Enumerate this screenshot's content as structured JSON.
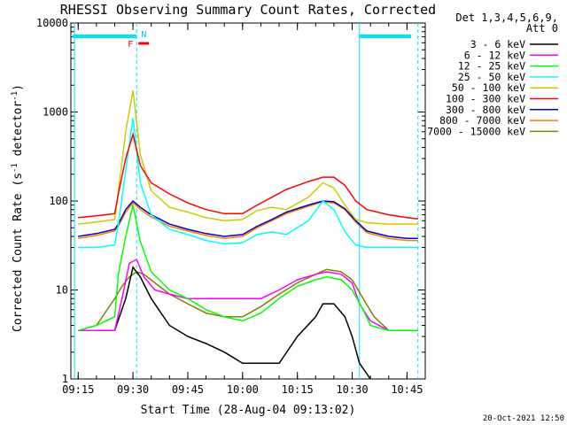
{
  "chart_data": {
    "type": "line",
    "title": "RHESSI Observing Summary Count Rates, Corrected",
    "xlabel": "Start Time (28-Aug-04 09:13:02)",
    "ylabel_main": "Corrected Count Rate (s",
    "ylabel_sup1": "-1",
    "ylabel_mid": " detector",
    "ylabel_sup2": "-1",
    "ylabel_end": ")",
    "y_scale": "log",
    "ylim": [
      1,
      10000
    ],
    "xlim": [
      "09:13",
      "10:50"
    ],
    "x_ticks": [
      "09:15",
      "09:30",
      "09:45",
      "10:00",
      "10:15",
      "10:30",
      "10:45"
    ],
    "y_ticks": [
      "1",
      "10",
      "100",
      "1000",
      "10000"
    ],
    "legend_header": [
      "Det 1,3,4,5,6,9,",
      "Att 0"
    ],
    "legend_position": "right",
    "timestamp": "20-Oct-2021 12:50",
    "flags": {
      "f_label": "F",
      "n_label": "N"
    },
    "vertical_lines": [
      "09:14",
      "09:31",
      "10:32",
      "10:48"
    ],
    "series": [
      {
        "name": "3 - 6 keV",
        "color": "#000000",
        "x": [
          "09:15",
          "09:25",
          "09:28",
          "09:30",
          "09:32",
          "09:35",
          "09:40",
          "09:45",
          "09:50",
          "09:55",
          "10:00",
          "10:05",
          "10:10",
          "10:15",
          "10:20",
          "10:22",
          "10:25",
          "10:28",
          "10:30",
          "10:32",
          "10:35"
        ],
        "y": [
          3.5,
          3.5,
          8,
          18,
          14,
          8,
          4,
          3,
          2.5,
          2,
          1.5,
          1.5,
          1.5,
          3,
          5,
          7,
          7,
          5,
          3,
          1.5,
          1
        ]
      },
      {
        "name": "6 - 12 keV",
        "color": "#ff00ff",
        "x": [
          "09:15",
          "09:25",
          "09:27",
          "09:29",
          "09:31",
          "09:33",
          "09:36",
          "09:40",
          "09:45",
          "09:50",
          "09:55",
          "10:00",
          "10:05",
          "10:10",
          "10:15",
          "10:20",
          "10:23",
          "10:27",
          "10:30",
          "10:32",
          "10:35",
          "10:40",
          "10:45",
          "10:48"
        ],
        "y": [
          3.5,
          3.5,
          8,
          20,
          22,
          14,
          10,
          9,
          8,
          8,
          8,
          8,
          8,
          10,
          13,
          15,
          16,
          15,
          12,
          7,
          4.5,
          3.5,
          3.5,
          3.5
        ]
      },
      {
        "name": "12 - 25 keV",
        "color": "#00ff00",
        "x": [
          "09:15",
          "09:20",
          "09:25",
          "09:26",
          "09:28",
          "09:30",
          "09:32",
          "09:35",
          "09:40",
          "09:45",
          "09:50",
          "09:55",
          "10:00",
          "10:05",
          "10:10",
          "10:15",
          "10:20",
          "10:23",
          "10:27",
          "10:30",
          "10:33",
          "10:35",
          "10:40",
          "10:45",
          "10:48"
        ],
        "y": [
          3.5,
          4,
          5,
          15,
          40,
          90,
          35,
          16,
          10,
          8,
          6,
          5,
          4.5,
          5.5,
          8,
          11,
          13,
          14,
          13,
          10,
          6,
          4,
          3.5,
          3.5,
          3.5
        ]
      },
      {
        "name": "25 - 50 keV",
        "color": "#00ffff",
        "x": [
          "09:15",
          "09:20",
          "09:25",
          "09:26",
          "09:28",
          "09:30",
          "09:32",
          "09:35",
          "09:40",
          "09:45",
          "09:50",
          "09:55",
          "10:00",
          "10:04",
          "10:08",
          "10:12",
          "10:18",
          "10:22",
          "10:25",
          "10:28",
          "10:31",
          "10:34",
          "10:40",
          "10:45",
          "10:48"
        ],
        "y": [
          30,
          30,
          32,
          55,
          220,
          850,
          160,
          70,
          48,
          42,
          36,
          33,
          34,
          42,
          45,
          42,
          60,
          100,
          80,
          45,
          32,
          30,
          30,
          30,
          30
        ]
      },
      {
        "name": "50 - 100 keV",
        "color": "#cccc00",
        "x": [
          "09:15",
          "09:20",
          "09:25",
          "09:26",
          "09:28",
          "09:30",
          "09:32",
          "09:35",
          "09:40",
          "09:45",
          "09:50",
          "09:55",
          "10:00",
          "10:04",
          "10:08",
          "10:12",
          "10:18",
          "10:22",
          "10:25",
          "10:28",
          "10:31",
          "10:34",
          "10:40",
          "10:45",
          "10:48"
        ],
        "y": [
          55,
          58,
          62,
          130,
          600,
          1750,
          330,
          130,
          85,
          75,
          65,
          60,
          62,
          78,
          85,
          80,
          110,
          160,
          140,
          90,
          62,
          57,
          55,
          55,
          55
        ]
      },
      {
        "name": "100 - 300 keV",
        "color": "#ff0000",
        "x": [
          "09:15",
          "09:20",
          "09:25",
          "09:26",
          "09:28",
          "09:30",
          "09:32",
          "09:35",
          "09:40",
          "09:45",
          "09:50",
          "09:55",
          "10:00",
          "10:04",
          "10:08",
          "10:12",
          "10:18",
          "10:22",
          "10:25",
          "10:28",
          "10:31",
          "10:34",
          "10:40",
          "10:45",
          "10:48"
        ],
        "y": [
          65,
          68,
          72,
          120,
          300,
          560,
          250,
          160,
          120,
          95,
          80,
          72,
          72,
          90,
          110,
          135,
          165,
          185,
          185,
          150,
          100,
          80,
          70,
          65,
          63
        ]
      },
      {
        "name": "300 - 800 keV",
        "color": "#0000cc",
        "x": [
          "09:15",
          "09:20",
          "09:25",
          "09:26",
          "09:28",
          "09:30",
          "09:32",
          "09:35",
          "09:40",
          "09:45",
          "09:50",
          "09:55",
          "10:00",
          "10:04",
          "10:08",
          "10:12",
          "10:18",
          "10:22",
          "10:25",
          "10:28",
          "10:31",
          "10:34",
          "10:40",
          "10:45",
          "10:48"
        ],
        "y": [
          40,
          43,
          48,
          55,
          80,
          100,
          85,
          70,
          55,
          48,
          43,
          40,
          42,
          52,
          62,
          75,
          90,
          100,
          98,
          82,
          60,
          46,
          40,
          38,
          38
        ]
      },
      {
        "name": "800 - 7000 keV",
        "color": "#ff8000",
        "x": [
          "09:15",
          "09:20",
          "09:25",
          "09:26",
          "09:28",
          "09:30",
          "09:32",
          "09:35",
          "09:40",
          "09:45",
          "09:50",
          "09:55",
          "10:00",
          "10:04",
          "10:08",
          "10:12",
          "10:18",
          "10:22",
          "10:25",
          "10:28",
          "10:31",
          "10:34",
          "10:40",
          "10:45",
          "10:48"
        ],
        "y": [
          38,
          41,
          46,
          52,
          75,
          95,
          80,
          66,
          52,
          46,
          41,
          38,
          40,
          50,
          60,
          72,
          87,
          98,
          95,
          80,
          58,
          44,
          38,
          36,
          36
        ]
      },
      {
        "name": "7000 - 15000 keV",
        "color": "#808000",
        "x": [
          "09:15",
          "09:20",
          "09:25",
          "09:27",
          "09:29",
          "09:31",
          "09:33",
          "09:36",
          "09:40",
          "09:45",
          "09:50",
          "09:55",
          "10:00",
          "10:05",
          "10:10",
          "10:15",
          "10:20",
          "10:23",
          "10:27",
          "10:30",
          "10:33",
          "10:36",
          "10:40",
          "10:45",
          "10:48"
        ],
        "y": [
          3.5,
          4,
          8,
          11,
          14,
          16,
          15,
          12,
          9,
          7,
          5.5,
          5,
          5,
          6.5,
          9,
          12,
          15,
          17,
          16,
          13,
          8,
          5,
          3.5,
          3.5,
          3.5
        ]
      }
    ]
  }
}
